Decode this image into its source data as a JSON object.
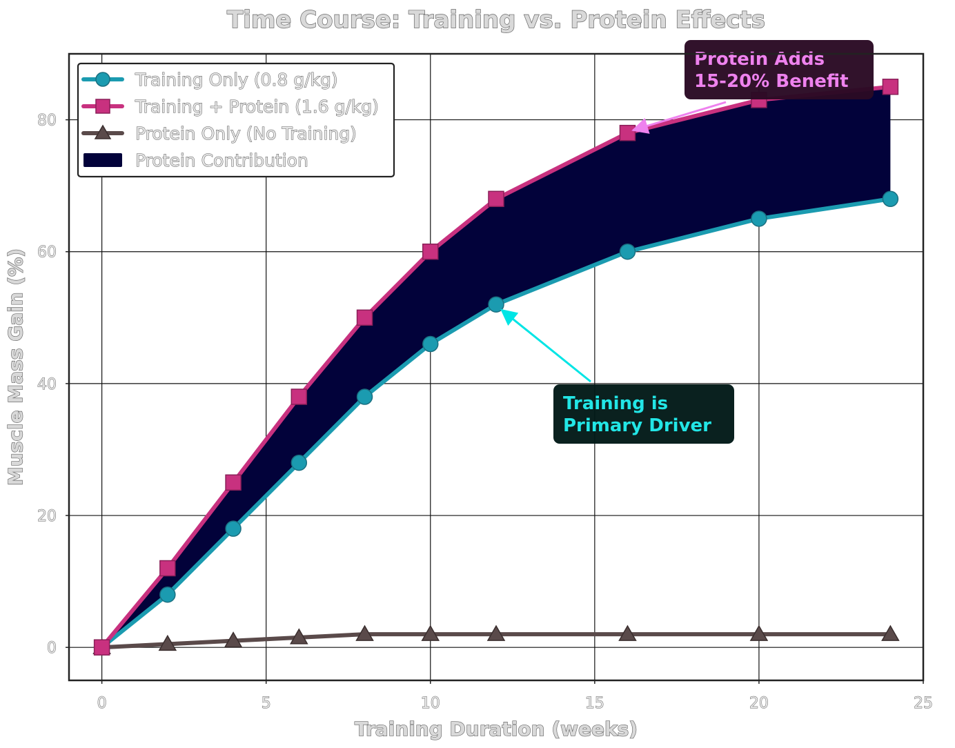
{
  "chart_data": {
    "type": "line",
    "title": "Time Course: Training vs. Protein Effects",
    "xlabel": "Training Duration (weeks)",
    "ylabel": "Muscle Mass Gain (%)",
    "xlim": [
      -1,
      25
    ],
    "ylim": [
      -5,
      90
    ],
    "xticks": [
      0,
      5,
      10,
      15,
      20,
      25
    ],
    "yticks": [
      0,
      20,
      40,
      60,
      80
    ],
    "grid": true,
    "legend_position": "upper-left",
    "series": [
      {
        "name": "Training Only (0.8 g/kg)",
        "color": "#1b9bb0",
        "marker": "circle",
        "x": [
          0,
          2,
          4,
          6,
          8,
          10,
          12,
          16,
          20,
          24
        ],
        "y": [
          0,
          8,
          18,
          28,
          38,
          46,
          52,
          60,
          65,
          68
        ]
      },
      {
        "name": "Training + Protein (1.6 g/kg)",
        "color": "#c8317f",
        "marker": "square",
        "x": [
          0,
          2,
          4,
          6,
          8,
          10,
          12,
          16,
          20,
          24
        ],
        "y": [
          0,
          12,
          25,
          38,
          50,
          60,
          68,
          78,
          83,
          85
        ]
      },
      {
        "name": "Protein Only (No Training)",
        "color": "#5a4a4a",
        "marker": "triangle",
        "x": [
          0,
          2,
          4,
          6,
          8,
          10,
          12,
          16,
          20,
          24
        ],
        "y": [
          0,
          0.5,
          1,
          1.5,
          2,
          2,
          2,
          2,
          2,
          2
        ]
      }
    ],
    "fill": {
      "name": "Protein Contribution",
      "color": "#02023a",
      "between": [
        "Training Only (0.8 g/kg)",
        "Training + Protein (1.6 g/kg)"
      ]
    },
    "annotations": [
      {
        "lines": [
          "Protein Adds",
          "15-20% Benefit"
        ],
        "text_color": "#ee82ee",
        "box_color": "#2a0a24",
        "arrow_color": "#ee82ee",
        "point": [
          16,
          78
        ]
      },
      {
        "lines": [
          "Training is",
          "Primary Driver"
        ],
        "text_color": "#22e6e6",
        "box_color": "#021a18",
        "arrow_color": "#00e5e5",
        "point": [
          12,
          52
        ]
      }
    ]
  }
}
